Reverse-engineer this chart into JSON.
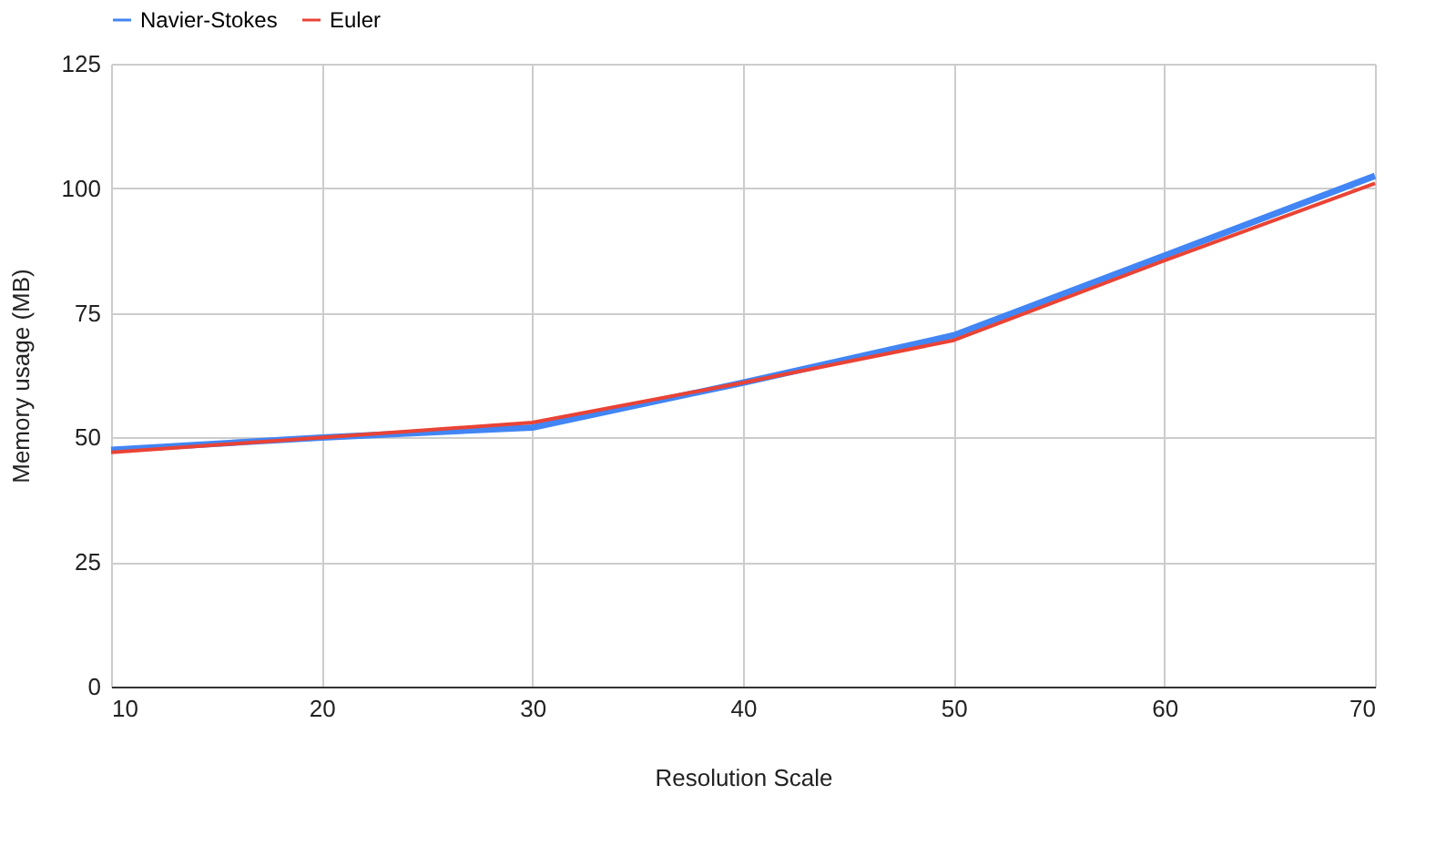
{
  "chart_data": {
    "type": "line",
    "xlabel": "Resolution Scale",
    "ylabel": "Memory usage (MB)",
    "x": [
      10,
      20,
      30,
      40,
      50,
      60,
      70
    ],
    "series": [
      {
        "name": "Navier-Stokes",
        "color": "#4285f4",
        "values": [
          47.5,
          50,
          52,
          61,
          70.5,
          86.5,
          102.5
        ]
      },
      {
        "name": "Euler",
        "color": "#ea4335",
        "values": [
          47,
          50,
          53,
          61,
          69.5,
          85.5,
          101
        ]
      }
    ],
    "xlim": [
      10,
      70
    ],
    "xticks": [
      10,
      20,
      30,
      40,
      50,
      60,
      70
    ],
    "ylim": [
      0,
      125
    ],
    "yticks": [
      0,
      25,
      50,
      75,
      100,
      125
    ],
    "grid": true,
    "legend": "top",
    "marker": "none",
    "line_style": "solid"
  }
}
